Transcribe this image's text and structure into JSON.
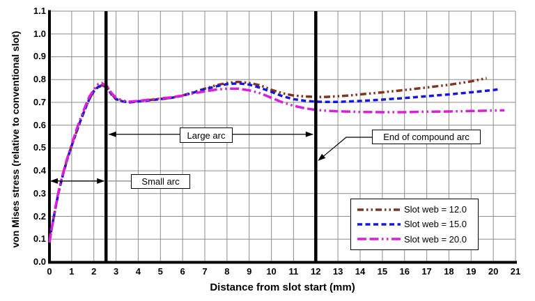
{
  "chart_data": {
    "type": "line",
    "title": "",
    "xlabel": "Distance from slot start (mm)",
    "ylabel": "von Mises stress (relative to conventional slot)",
    "xlim": [
      0,
      21
    ],
    "ylim": [
      0.0,
      1.1
    ],
    "xticks": [
      0,
      1,
      2,
      3,
      4,
      5,
      6,
      7,
      8,
      9,
      10,
      11,
      12,
      13,
      14,
      15,
      16,
      17,
      18,
      19,
      20,
      21
    ],
    "yticks": [
      0.0,
      0.1,
      0.2,
      0.3,
      0.4,
      0.5,
      0.6,
      0.7,
      0.8,
      0.9,
      1.0,
      1.1
    ],
    "grid": true,
    "grid_color": "#8c8c8c",
    "legend_position": "lower-right",
    "vertical_markers": [
      {
        "x": 2.55,
        "meaning": "end of small arc / start of large arc"
      },
      {
        "x": 12.0,
        "meaning": "end of compound arc"
      }
    ],
    "annotations": [
      {
        "text": "Small arc",
        "type": "double-arrow",
        "y": 0.355,
        "x1": 0,
        "x2": 2.55
      },
      {
        "text": "Large arc",
        "type": "double-arrow",
        "y": 0.56,
        "x1": 2.55,
        "x2": 12
      },
      {
        "text": "End of compound arc",
        "type": "leader-arrow",
        "points_to": [
          12,
          0.45
        ]
      }
    ],
    "series": [
      {
        "name": "Slot web = 12.0",
        "color": "#87321e",
        "dash": "9 4 2.5 4 2.5 4",
        "points": [
          [
            0,
            0.1
          ],
          [
            0.2,
            0.2
          ],
          [
            0.4,
            0.3
          ],
          [
            0.6,
            0.38
          ],
          [
            0.8,
            0.45
          ],
          [
            1.0,
            0.51
          ],
          [
            1.2,
            0.565
          ],
          [
            1.4,
            0.62
          ],
          [
            1.6,
            0.67
          ],
          [
            1.8,
            0.715
          ],
          [
            2.0,
            0.75
          ],
          [
            2.2,
            0.77
          ],
          [
            2.4,
            0.775
          ],
          [
            2.6,
            0.765
          ],
          [
            2.8,
            0.735
          ],
          [
            3.0,
            0.715
          ],
          [
            3.3,
            0.705
          ],
          [
            3.6,
            0.7
          ],
          [
            4.0,
            0.705
          ],
          [
            4.5,
            0.71
          ],
          [
            5.0,
            0.715
          ],
          [
            5.5,
            0.72
          ],
          [
            6.0,
            0.73
          ],
          [
            6.5,
            0.745
          ],
          [
            7.0,
            0.76
          ],
          [
            7.5,
            0.775
          ],
          [
            8.0,
            0.785
          ],
          [
            8.5,
            0.79
          ],
          [
            9.0,
            0.785
          ],
          [
            9.5,
            0.775
          ],
          [
            10.0,
            0.755
          ],
          [
            10.5,
            0.74
          ],
          [
            11.0,
            0.73
          ],
          [
            11.5,
            0.726
          ],
          [
            12.0,
            0.724
          ],
          [
            12.5,
            0.724
          ],
          [
            13.0,
            0.727
          ],
          [
            13.5,
            0.73
          ],
          [
            14.0,
            0.735
          ],
          [
            15.0,
            0.744
          ],
          [
            16.0,
            0.754
          ],
          [
            17.0,
            0.765
          ],
          [
            18.0,
            0.777
          ],
          [
            19.0,
            0.792
          ],
          [
            19.7,
            0.806
          ]
        ]
      },
      {
        "name": "Slot web = 15.0",
        "color": "#1616e0",
        "dash": "7 4.5",
        "points": [
          [
            0,
            0.095
          ],
          [
            0.2,
            0.2
          ],
          [
            0.4,
            0.3
          ],
          [
            0.6,
            0.38
          ],
          [
            0.8,
            0.45
          ],
          [
            1.0,
            0.51
          ],
          [
            1.2,
            0.565
          ],
          [
            1.4,
            0.62
          ],
          [
            1.6,
            0.67
          ],
          [
            1.8,
            0.715
          ],
          [
            2.0,
            0.748
          ],
          [
            2.2,
            0.768
          ],
          [
            2.4,
            0.774
          ],
          [
            2.6,
            0.764
          ],
          [
            2.8,
            0.734
          ],
          [
            3.0,
            0.714
          ],
          [
            3.3,
            0.704
          ],
          [
            3.6,
            0.7
          ],
          [
            4.0,
            0.704
          ],
          [
            4.5,
            0.709
          ],
          [
            5.0,
            0.714
          ],
          [
            5.5,
            0.72
          ],
          [
            6.0,
            0.729
          ],
          [
            6.5,
            0.743
          ],
          [
            7.0,
            0.757
          ],
          [
            7.5,
            0.77
          ],
          [
            8.0,
            0.78
          ],
          [
            8.5,
            0.783
          ],
          [
            9.0,
            0.778
          ],
          [
            9.5,
            0.764
          ],
          [
            10.0,
            0.746
          ],
          [
            10.5,
            0.727
          ],
          [
            11.0,
            0.714
          ],
          [
            11.5,
            0.707
          ],
          [
            12.0,
            0.703
          ],
          [
            12.5,
            0.702
          ],
          [
            13.0,
            0.702
          ],
          [
            14.0,
            0.706
          ],
          [
            15.0,
            0.712
          ],
          [
            16.0,
            0.719
          ],
          [
            17.0,
            0.727
          ],
          [
            18.0,
            0.735
          ],
          [
            19.0,
            0.744
          ],
          [
            20.0,
            0.754
          ],
          [
            20.3,
            0.758
          ]
        ]
      },
      {
        "name": "Slot web = 20.0",
        "color": "#db1edb",
        "dash": "13 4.5 13 4.5 2.5 4.5 2.5 4.5",
        "points": [
          [
            0,
            0.085
          ],
          [
            0.2,
            0.205
          ],
          [
            0.4,
            0.305
          ],
          [
            0.6,
            0.385
          ],
          [
            0.8,
            0.455
          ],
          [
            1.0,
            0.515
          ],
          [
            1.2,
            0.575
          ],
          [
            1.4,
            0.63
          ],
          [
            1.6,
            0.68
          ],
          [
            1.8,
            0.725
          ],
          [
            2.0,
            0.755
          ],
          [
            2.2,
            0.78
          ],
          [
            2.35,
            0.785
          ],
          [
            2.6,
            0.77
          ],
          [
            2.8,
            0.74
          ],
          [
            3.0,
            0.72
          ],
          [
            3.3,
            0.708
          ],
          [
            3.6,
            0.703
          ],
          [
            4.0,
            0.706
          ],
          [
            4.5,
            0.712
          ],
          [
            5.0,
            0.717
          ],
          [
            5.5,
            0.722
          ],
          [
            6.0,
            0.73
          ],
          [
            6.5,
            0.74
          ],
          [
            7.0,
            0.748
          ],
          [
            7.5,
            0.756
          ],
          [
            8.0,
            0.76
          ],
          [
            8.5,
            0.76
          ],
          [
            9.0,
            0.753
          ],
          [
            9.5,
            0.74
          ],
          [
            10.0,
            0.72
          ],
          [
            10.5,
            0.7
          ],
          [
            11.0,
            0.685
          ],
          [
            11.5,
            0.674
          ],
          [
            12.0,
            0.667
          ],
          [
            12.5,
            0.663
          ],
          [
            13.0,
            0.661
          ],
          [
            14.0,
            0.658
          ],
          [
            15.0,
            0.657
          ],
          [
            16.0,
            0.657
          ],
          [
            17.0,
            0.659
          ],
          [
            18.0,
            0.66
          ],
          [
            19.0,
            0.662
          ],
          [
            20.0,
            0.664
          ],
          [
            20.5,
            0.665
          ]
        ]
      }
    ]
  },
  "colors": {
    "axis": "#000000",
    "grid": "#8c8c8c",
    "marker_line": "#000000",
    "leader_gray": "#909090",
    "background": "#ffffff"
  }
}
